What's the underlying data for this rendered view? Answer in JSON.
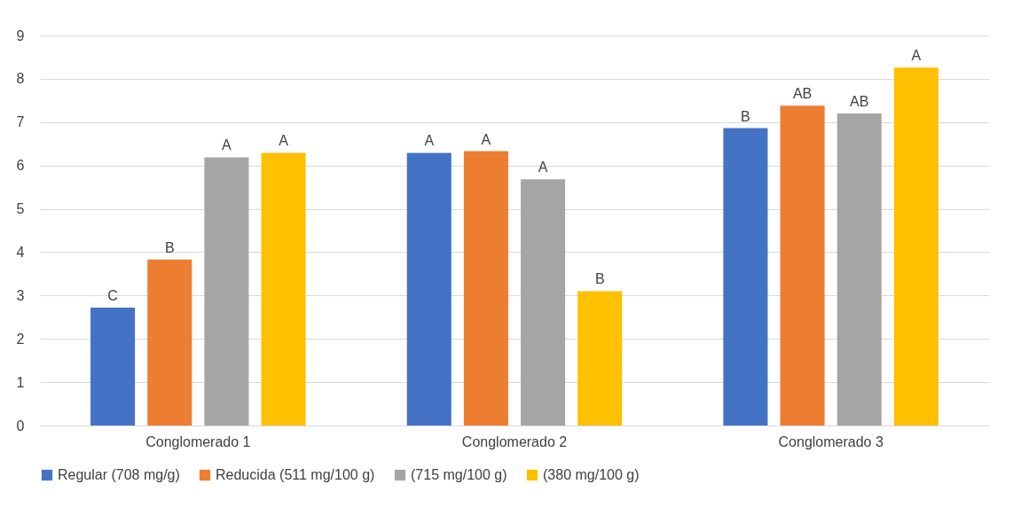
{
  "chart_data": {
    "type": "bar",
    "categories": [
      "Conglomerado 1",
      "Conglomerado 2",
      "Conglomerado 3"
    ],
    "series": [
      {
        "name": "Regular (708 mg/g)",
        "color": "#4472c4",
        "values": [
          2.72,
          6.29,
          6.86
        ],
        "value_labels": [
          "C",
          "A",
          "B"
        ]
      },
      {
        "name": "Reducida (511 mg/100 g)",
        "color": "#ed7d31",
        "values": [
          3.83,
          6.33,
          7.38
        ],
        "value_labels": [
          "B",
          "A",
          "AB"
        ]
      },
      {
        "name": "(715 mg/100 g)",
        "color": "#a5a5a5",
        "values": [
          6.19,
          5.68,
          7.2
        ],
        "value_labels": [
          "A",
          "A",
          "AB"
        ]
      },
      {
        "name": "(380 mg/100 g)",
        "color": "#ffc000",
        "values": [
          6.29,
          3.1,
          8.26
        ],
        "value_labels": [
          "A",
          "B",
          "A"
        ]
      }
    ],
    "ylim": [
      0,
      9
    ],
    "yticks": [
      0,
      1,
      2,
      3,
      4,
      5,
      6,
      7,
      8,
      9
    ],
    "grid": "y",
    "legend": "bottom"
  }
}
